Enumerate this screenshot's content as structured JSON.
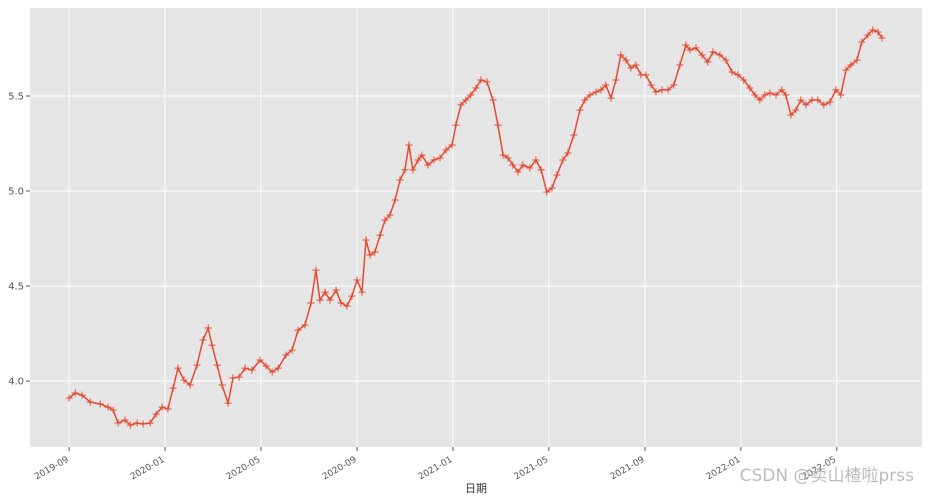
{
  "chart_data": {
    "type": "line",
    "x_label": "日期",
    "watermark": "CSDN @卖山楂啦prss",
    "marker": "+",
    "grid": true,
    "xlim": [
      2019.531,
      2022.629
    ],
    "ylim": [
      3.653,
      5.963
    ],
    "xticks": [
      {
        "value": 2019.667,
        "label": "2019-09"
      },
      {
        "value": 2020.0,
        "label": "2020-01"
      },
      {
        "value": 2020.333,
        "label": "2020-05"
      },
      {
        "value": 2020.667,
        "label": "2020-09"
      },
      {
        "value": 2021.0,
        "label": "2021-01"
      },
      {
        "value": 2021.333,
        "label": "2021-05"
      },
      {
        "value": 2021.667,
        "label": "2021-09"
      },
      {
        "value": 2022.0,
        "label": "2022-01"
      },
      {
        "value": 2022.333,
        "label": "2022-05"
      }
    ],
    "yticks": [
      {
        "value": 4.0,
        "label": "4.0"
      },
      4.5,
      {
        "value": 5.0,
        "label": "5.0"
      },
      5.5
    ],
    "x": [
      2019.667,
      2019.688,
      2019.712,
      2019.74,
      2019.775,
      2019.802,
      2019.82,
      2019.837,
      2019.861,
      2019.879,
      2019.903,
      2019.924,
      2019.948,
      2019.969,
      2019.99,
      2020.01,
      2020.028,
      2020.045,
      2020.066,
      2020.087,
      2020.111,
      2020.132,
      2020.15,
      2020.163,
      2020.181,
      2020.198,
      2020.219,
      2020.236,
      2020.257,
      2020.278,
      2020.302,
      2020.33,
      2020.351,
      2020.372,
      2020.393,
      2020.42,
      2020.441,
      2020.462,
      2020.486,
      2020.507,
      2020.524,
      2020.538,
      2020.556,
      2020.573,
      2020.594,
      2020.611,
      2020.632,
      2020.649,
      2020.667,
      2020.684,
      2020.698,
      2020.712,
      2020.729,
      2020.747,
      2020.764,
      2020.781,
      2020.799,
      2020.816,
      2020.833,
      2020.847,
      2020.861,
      2020.879,
      2020.892,
      2020.913,
      2020.934,
      2020.955,
      2020.976,
      2020.997,
      2021.01,
      2021.028,
      2021.045,
      2021.062,
      2021.08,
      2021.097,
      2021.118,
      2021.139,
      2021.156,
      2021.174,
      2021.191,
      2021.208,
      2021.226,
      2021.243,
      2021.267,
      2021.288,
      2021.306,
      2021.326,
      2021.344,
      2021.361,
      2021.382,
      2021.399,
      2021.42,
      2021.441,
      2021.458,
      2021.476,
      2021.497,
      2021.514,
      2021.531,
      2021.549,
      2021.566,
      2021.583,
      2021.601,
      2021.618,
      2021.635,
      2021.653,
      2021.67,
      2021.688,
      2021.705,
      2021.726,
      2021.747,
      2021.767,
      2021.788,
      2021.809,
      2021.823,
      2021.844,
      2021.865,
      2021.885,
      2021.903,
      2021.927,
      2021.948,
      2021.969,
      2021.99,
      2022.01,
      2022.031,
      2022.049,
      2022.066,
      2022.083,
      2022.101,
      2022.122,
      2022.142,
      2022.156,
      2022.174,
      2022.191,
      2022.208,
      2022.226,
      2022.247,
      2022.267,
      2022.288,
      2022.309,
      2022.33,
      2022.347,
      2022.365,
      2022.382,
      2022.403,
      2022.42,
      2022.441,
      2022.458,
      2022.476,
      2022.49
    ],
    "series": [
      {
        "color": "#E24A33",
        "values": [
          3.911,
          3.937,
          3.926,
          3.889,
          3.879,
          3.863,
          3.847,
          3.779,
          3.795,
          3.768,
          3.779,
          3.774,
          3.779,
          3.826,
          3.863,
          3.853,
          3.963,
          4.068,
          4.005,
          3.979,
          4.084,
          4.216,
          4.279,
          4.189,
          4.084,
          3.979,
          3.884,
          4.016,
          4.021,
          4.068,
          4.058,
          4.111,
          4.079,
          4.047,
          4.068,
          4.137,
          4.163,
          4.268,
          4.295,
          4.411,
          4.584,
          4.426,
          4.468,
          4.426,
          4.479,
          4.411,
          4.395,
          4.447,
          4.532,
          4.468,
          4.742,
          4.663,
          4.679,
          4.768,
          4.847,
          4.874,
          4.953,
          5.058,
          5.111,
          5.242,
          5.111,
          5.163,
          5.189,
          5.137,
          5.163,
          5.174,
          5.216,
          5.242,
          5.347,
          5.453,
          5.479,
          5.505,
          5.542,
          5.584,
          5.574,
          5.479,
          5.347,
          5.189,
          5.174,
          5.137,
          5.1,
          5.137,
          5.121,
          5.163,
          5.111,
          4.995,
          5.016,
          5.084,
          5.163,
          5.2,
          5.295,
          5.426,
          5.479,
          5.505,
          5.521,
          5.532,
          5.558,
          5.489,
          5.584,
          5.716,
          5.689,
          5.647,
          5.663,
          5.611,
          5.611,
          5.558,
          5.521,
          5.532,
          5.532,
          5.558,
          5.663,
          5.768,
          5.742,
          5.753,
          5.716,
          5.679,
          5.732,
          5.716,
          5.689,
          5.626,
          5.611,
          5.584,
          5.542,
          5.505,
          5.479,
          5.505,
          5.516,
          5.505,
          5.532,
          5.505,
          5.4,
          5.426,
          5.479,
          5.453,
          5.479,
          5.479,
          5.453,
          5.468,
          5.532,
          5.505,
          5.637,
          5.663,
          5.689,
          5.784,
          5.821,
          5.847,
          5.837,
          5.805
        ]
      }
    ]
  }
}
